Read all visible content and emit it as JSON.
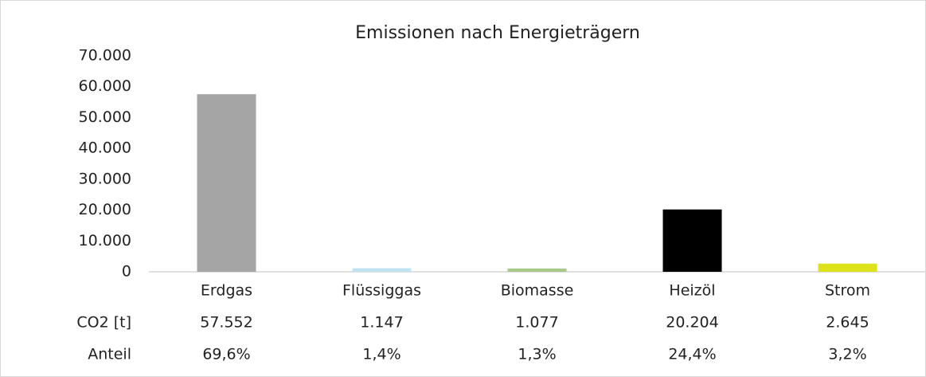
{
  "chart_data": {
    "type": "bar",
    "title": "Emissionen nach Energieträgern",
    "categories": [
      "Erdgas",
      "Flüssiggas",
      "Biomasse",
      "Heizöl",
      "Strom"
    ],
    "series": [
      {
        "name": "CO2 [t]",
        "colors": [
          "#a5a5a5",
          "#bfe3f3",
          "#a9c98b",
          "#000000",
          "#dde21b"
        ],
        "values": [
          57552,
          1147,
          1077,
          20204,
          2645
        ],
        "value_labels": [
          "57.552",
          "1.147",
          "1.077",
          "20.204",
          "2.645"
        ]
      }
    ],
    "shares": {
      "name": "Anteil",
      "values": [
        69.6,
        1.4,
        1.3,
        24.4,
        3.2
      ],
      "value_labels": [
        "69,6%",
        "1,4%",
        "1,3%",
        "24,4%",
        "3,2%"
      ]
    },
    "ylim": [
      0,
      70000
    ],
    "yticks": [
      0,
      {
        "value": 10000,
        "label": "10.000"
      },
      {
        "value": 20000,
        "label": "20.000"
      },
      {
        "value": 30000,
        "label": "30.000"
      },
      {
        "value": 40000,
        "label": "40.000"
      },
      {
        "value": 50000,
        "label": "50.000"
      },
      {
        "value": 60000,
        "label": "60.000"
      },
      {
        "value": 70000,
        "label": "70.000"
      }
    ],
    "grid": false
  }
}
